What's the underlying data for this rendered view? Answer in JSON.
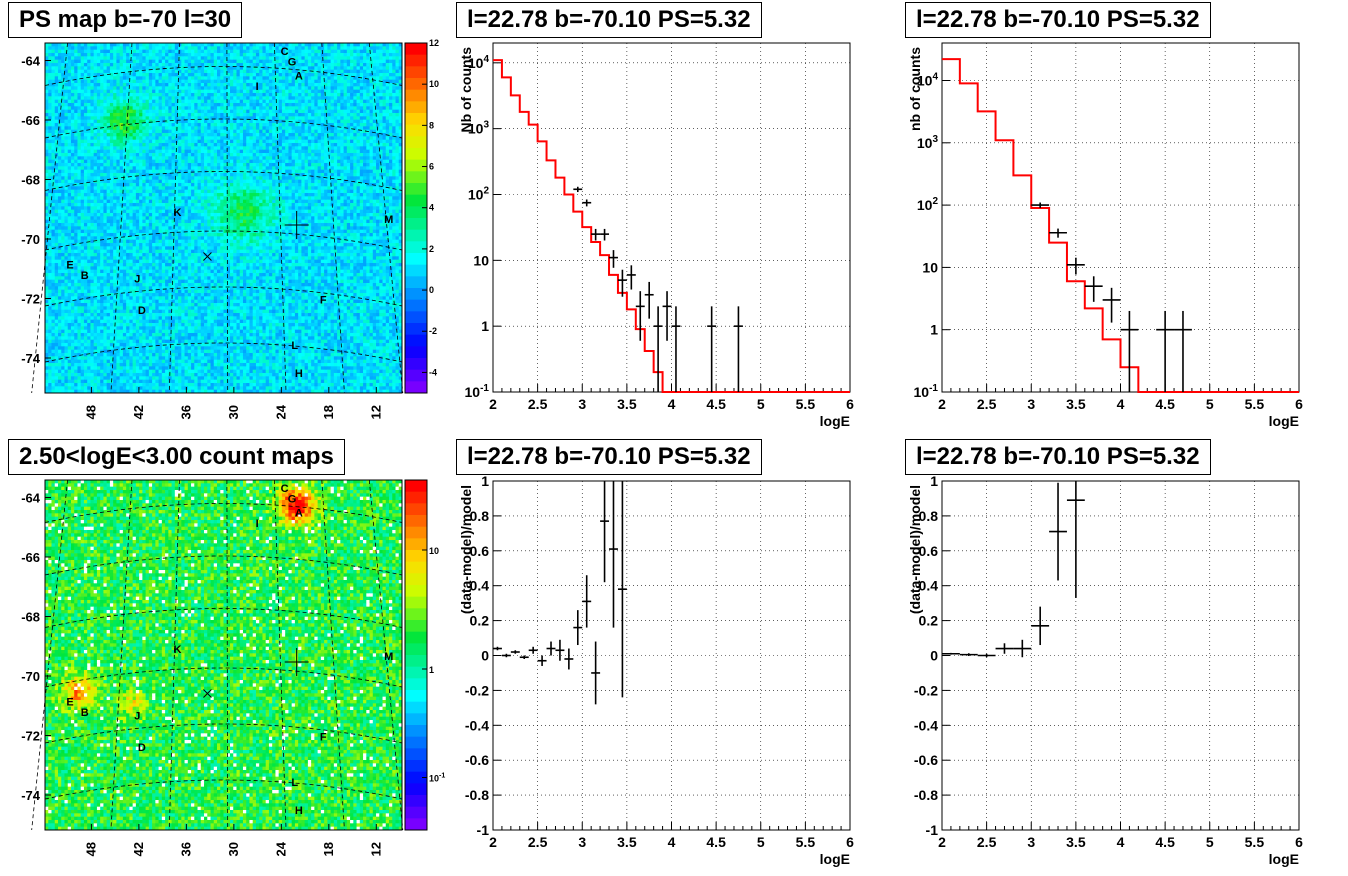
{
  "panels": {
    "ps_map": {
      "title": "PS map b=-70 l=30"
    },
    "count_map": {
      "title": "2.50<logE<3.00 count maps"
    },
    "spec1": {
      "title": "l=22.78 b=-70.10 PS=5.32"
    },
    "spec2": {
      "title": "l=22.78 b=-70.10 PS=5.32"
    },
    "res1": {
      "title": "l=22.78 b=-70.10 PS=5.32"
    },
    "res2": {
      "title": "l=22.78 b=-70.10 PS=5.32"
    }
  },
  "colors": {
    "model_line": "#ff0000",
    "data": "#000000",
    "grid": "#000000"
  },
  "chart_data": [
    {
      "id": "ps_map",
      "type": "heatmap",
      "title": "PS map b=-70 l=30",
      "x_ticks": [
        "48",
        "42",
        "36",
        "30",
        "24",
        "18",
        "12"
      ],
      "y_ticks": [
        "-64",
        "-66",
        "-68",
        "-70",
        "-72",
        "-74"
      ],
      "z_ticks": [
        "12",
        "10",
        "8",
        "6",
        "4",
        "2",
        "0",
        "-2",
        "-4"
      ],
      "zlim": [
        -5,
        12
      ],
      "sources": [
        "C",
        "G",
        "A",
        "I",
        "K",
        "M",
        "E",
        "B",
        "J",
        "F",
        "D",
        "L",
        "H"
      ]
    },
    {
      "id": "count_map",
      "type": "heatmap",
      "zscale": "log",
      "title": "2.50<logE<3.00 count maps",
      "x_ticks": [
        "48",
        "42",
        "36",
        "30",
        "24",
        "18",
        "12"
      ],
      "y_ticks": [
        "-64",
        "-66",
        "-68",
        "-70",
        "-72",
        "-74"
      ],
      "z_ticks": [
        "10",
        "1",
        "10^-1"
      ],
      "sources": [
        "C",
        "G",
        "A",
        "I",
        "K",
        "M",
        "E",
        "B",
        "J",
        "F",
        "D",
        "L",
        "H"
      ]
    },
    {
      "id": "spec1",
      "type": "line",
      "yscale": "log",
      "title": "l=22.78 b=-70.10 PS=5.32",
      "xlabel": "logE",
      "ylabel": "Nb of counts",
      "xlim": [
        2,
        6
      ],
      "ylim": [
        0.1,
        20000
      ],
      "x_ticks": [
        "2",
        "2.5",
        "3",
        "3.5",
        "4",
        "4.5",
        "5",
        "5.5",
        "6"
      ],
      "y_ticks": [
        "10^4",
        "10^3",
        "10^2",
        "10",
        "1",
        "10^-1"
      ],
      "bin_width": 0.1,
      "model": [
        11000,
        6000,
        3200,
        1800,
        1150,
        640,
        330,
        180,
        100,
        55,
        32,
        19,
        12,
        6,
        3.2,
        1.8,
        0.9,
        0.42,
        0.2,
        0.1
      ],
      "data": [
        {
          "x": 2.95,
          "y": 120,
          "yerr": 11
        },
        {
          "x": 3.05,
          "y": 75,
          "yerr": 9
        },
        {
          "x": 3.15,
          "y": 25,
          "yerr": 5
        },
        {
          "x": 3.25,
          "y": 25,
          "yerr": 5
        },
        {
          "x": 3.35,
          "y": 11,
          "yerr": 3.3
        },
        {
          "x": 3.45,
          "y": 5,
          "yerr": 2.2
        },
        {
          "x": 3.55,
          "y": 6,
          "yerr": 2.4
        },
        {
          "x": 3.65,
          "y": 2,
          "yerr": 1.4
        },
        {
          "x": 3.75,
          "y": 3,
          "yerr": 1.7
        },
        {
          "x": 3.85,
          "y": 1,
          "yerr": 1
        },
        {
          "x": 3.95,
          "y": 2,
          "yerr": 1.4
        },
        {
          "x": 4.05,
          "y": 1,
          "yerr": 1
        },
        {
          "x": 4.45,
          "y": 1,
          "yerr": 1
        },
        {
          "x": 4.75,
          "y": 1,
          "yerr": 1
        }
      ]
    },
    {
      "id": "spec2",
      "type": "line",
      "yscale": "log",
      "title": "l=22.78 b=-70.10 PS=5.32",
      "xlabel": "logE",
      "ylabel": "nb of counts",
      "xlim": [
        2,
        6
      ],
      "ylim": [
        0.1,
        40000
      ],
      "x_ticks": [
        "2",
        "2.5",
        "3",
        "3.5",
        "4",
        "4.5",
        "5",
        "5.5",
        "6"
      ],
      "y_ticks": [
        "10^4",
        "10^3",
        "10^2",
        "10",
        "1",
        "10^-1"
      ],
      "bin_width": 0.2,
      "model": [
        22000,
        9000,
        3200,
        1100,
        300,
        90,
        25,
        6,
        2.2,
        0.7,
        0.25,
        0.1,
        0.1,
        0.1,
        0.1,
        0.1,
        0.1,
        0.1,
        0.1,
        0.1
      ],
      "data": [
        {
          "x": 3.1,
          "y": 100,
          "yerr": 10
        },
        {
          "x": 3.3,
          "y": 36,
          "yerr": 6
        },
        {
          "x": 3.5,
          "y": 11,
          "yerr": 3.3
        },
        {
          "x": 3.7,
          "y": 5,
          "yerr": 2.2
        },
        {
          "x": 3.9,
          "y": 3,
          "yerr": 1.7
        },
        {
          "x": 4.1,
          "y": 1,
          "yerr": 1
        },
        {
          "x": 4.5,
          "y": 1,
          "yerr": 1
        },
        {
          "x": 4.7,
          "y": 1,
          "yerr": 1
        }
      ]
    },
    {
      "id": "res1",
      "type": "scatter",
      "title": "l=22.78 b=-70.10 PS=5.32",
      "xlabel": "logE",
      "ylabel": "(data-model)/model",
      "xlim": [
        2,
        6
      ],
      "ylim": [
        -1,
        1
      ],
      "x_ticks": [
        "2",
        "2.5",
        "3",
        "3.5",
        "4",
        "4.5",
        "5",
        "5.5",
        "6"
      ],
      "y_ticks": [
        "1",
        "0.8",
        "0.6",
        "0.4",
        "0.2",
        "0",
        "-0.2",
        "-0.4",
        "-0.6",
        "-0.8",
        "-1"
      ],
      "bin_width": 0.1,
      "data": [
        {
          "x": 2.05,
          "y": 0.04,
          "yerr": 0.01
        },
        {
          "x": 2.15,
          "y": 0.0,
          "yerr": 0.01
        },
        {
          "x": 2.25,
          "y": 0.02,
          "yerr": 0.01
        },
        {
          "x": 2.35,
          "y": -0.01,
          "yerr": 0.01
        },
        {
          "x": 2.45,
          "y": 0.03,
          "yerr": 0.02
        },
        {
          "x": 2.55,
          "y": -0.03,
          "yerr": 0.03
        },
        {
          "x": 2.65,
          "y": 0.04,
          "yerr": 0.04
        },
        {
          "x": 2.75,
          "y": 0.03,
          "yerr": 0.06
        },
        {
          "x": 2.85,
          "y": -0.02,
          "yerr": 0.06
        },
        {
          "x": 2.95,
          "y": 0.16,
          "yerr": 0.1
        },
        {
          "x": 3.05,
          "y": 0.31,
          "yerr": 0.15
        },
        {
          "x": 3.15,
          "y": -0.1,
          "yerr": 0.18
        },
        {
          "x": 3.25,
          "y": 0.77,
          "yerr": 0.35
        },
        {
          "x": 3.35,
          "y": 0.61,
          "yerr": 0.45
        },
        {
          "x": 3.45,
          "y": 0.38,
          "yerr": 0.62
        }
      ]
    },
    {
      "id": "res2",
      "type": "scatter",
      "title": "l=22.78 b=-70.10 PS=5.32",
      "xlabel": "logE",
      "ylabel": "(data-model)/model",
      "xlim": [
        2,
        6
      ],
      "ylim": [
        -1,
        1
      ],
      "x_ticks": [
        "2",
        "2.5",
        "3",
        "3.5",
        "4",
        "4.5",
        "5",
        "5.5",
        "6"
      ],
      "y_ticks": [
        "1",
        "0.8",
        "0.6",
        "0.4",
        "0.2",
        "0",
        "-0.2",
        "-0.4",
        "-0.6",
        "-0.8",
        "-1"
      ],
      "bin_width": 0.2,
      "data": [
        {
          "x": 2.1,
          "y": 0.01,
          "yerr": 0.005
        },
        {
          "x": 2.3,
          "y": 0.005,
          "yerr": 0.008
        },
        {
          "x": 2.5,
          "y": 0.0,
          "yerr": 0.01
        },
        {
          "x": 2.7,
          "y": 0.04,
          "yerr": 0.03
        },
        {
          "x": 2.9,
          "y": 0.04,
          "yerr": 0.05
        },
        {
          "x": 3.1,
          "y": 0.17,
          "yerr": 0.11
        },
        {
          "x": 3.3,
          "y": 0.71,
          "yerr": 0.28
        },
        {
          "x": 3.5,
          "y": 0.89,
          "yerr": 0.56
        }
      ]
    }
  ]
}
